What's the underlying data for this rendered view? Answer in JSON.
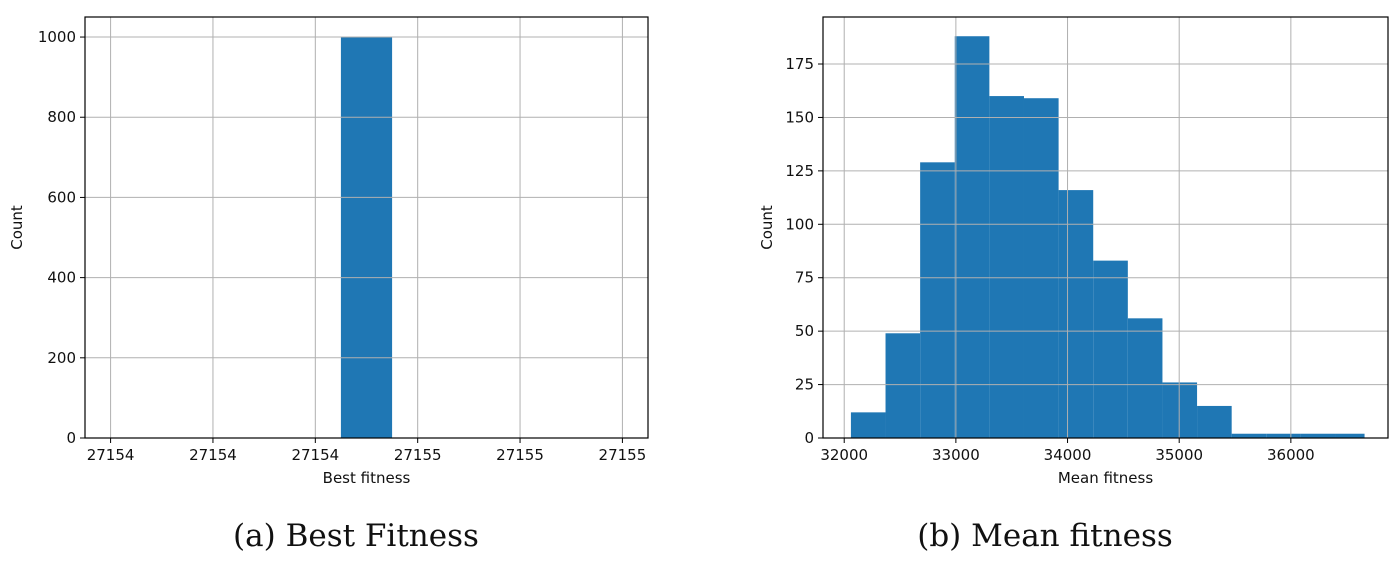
{
  "chart_data": [
    {
      "type": "bar",
      "caption": "(a) Best Fitness",
      "xlabel": "Best fitness",
      "ylabel": "Count",
      "grid": true,
      "bar_color": "#1f77b4",
      "xlim": [
        27153.95,
        27155.05
      ],
      "ylim": [
        0,
        1050
      ],
      "x_ticks": [
        27154.0,
        27154.2,
        27154.4,
        27154.6,
        27154.8,
        27155.0
      ],
      "x_tick_labels": [
        "27154",
        "27154",
        "27154",
        "27155",
        "27155",
        "27155"
      ],
      "y_ticks": [
        0,
        200,
        400,
        800,
        1000
      ],
      "y_tick_labels": [
        "0",
        "200",
        "400",
        "800",
        "1000"
      ],
      "extra_y_ticks": [
        600
      ],
      "extra_y_tick_labels": [
        "600"
      ],
      "bins": [
        {
          "x0": 27154.45,
          "x1": 27154.55,
          "value": 1000
        }
      ]
    },
    {
      "type": "bar",
      "caption": "(b) Mean fitness",
      "xlabel": "Mean fitness",
      "ylabel": "Count",
      "grid": true,
      "bar_color": "#1f77b4",
      "xlim": [
        31810,
        36870
      ],
      "ylim": [
        0,
        197
      ],
      "x_ticks": [
        32000,
        33000,
        34000,
        35000,
        36000
      ],
      "x_tick_labels": [
        "32000",
        "33000",
        "34000",
        "35000",
        "36000"
      ],
      "y_ticks": [
        0,
        25,
        50,
        75,
        100,
        125,
        150,
        175
      ],
      "y_tick_labels": [
        "0",
        "25",
        "50",
        "75",
        "100",
        "125",
        "150",
        "175"
      ],
      "bins": [
        {
          "x0": 32060,
          "x1": 32370,
          "value": 12
        },
        {
          "x0": 32370,
          "x1": 32680,
          "value": 49
        },
        {
          "x0": 32680,
          "x1": 32990,
          "value": 129
        },
        {
          "x0": 32990,
          "x1": 33300,
          "value": 188
        },
        {
          "x0": 33300,
          "x1": 33610,
          "value": 160
        },
        {
          "x0": 33610,
          "x1": 33920,
          "value": 159
        },
        {
          "x0": 33920,
          "x1": 34230,
          "value": 116
        },
        {
          "x0": 34230,
          "x1": 34540,
          "value": 83
        },
        {
          "x0": 34540,
          "x1": 34850,
          "value": 56
        },
        {
          "x0": 34850,
          "x1": 35160,
          "value": 26
        },
        {
          "x0": 35160,
          "x1": 35470,
          "value": 15
        },
        {
          "x0": 35470,
          "x1": 35780,
          "value": 2
        },
        {
          "x0": 35780,
          "x1": 36090,
          "value": 2
        },
        {
          "x0": 36090,
          "x1": 36400,
          "value": 2
        },
        {
          "x0": 36400,
          "x1": 36660,
          "value": 2
        }
      ]
    }
  ]
}
